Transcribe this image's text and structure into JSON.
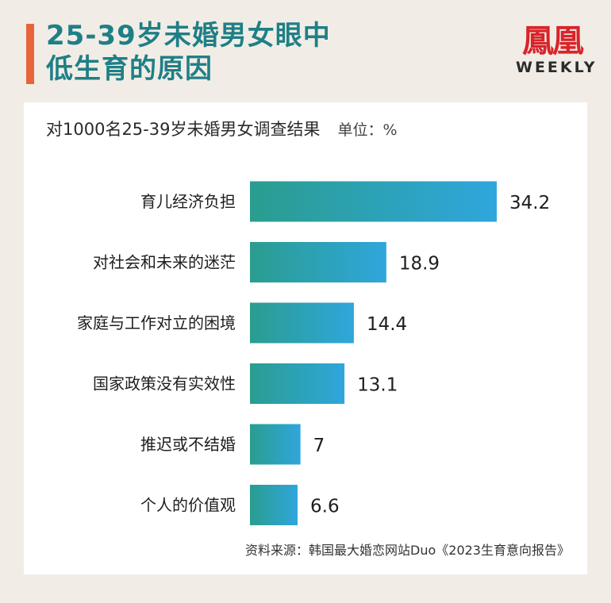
{
  "header": {
    "title_line1": "25-39岁未婚男女眼中",
    "title_line2": "低生育的原因",
    "logo_mark": "鳳凰",
    "logo_text": "WEEKLY"
  },
  "card": {
    "subtitle": "对1000名25-39岁未婚男女调查结果",
    "unit": "单位：%",
    "source": "资料来源：韩国最大婚恋网站Duo《2023生育意向报告》"
  },
  "colors": {
    "title": "#1f7f86",
    "accent": "#e8643a",
    "bar_start": "#2a9d8f",
    "bar_end": "#2fa6dc",
    "logo": "#d9232a"
  },
  "chart_data": {
    "type": "bar",
    "orientation": "horizontal",
    "categories": [
      "育儿经济负担",
      "对社会和未来的迷茫",
      "家庭与工作对立的困境",
      "国家政策没有实效性",
      "推迟或不结婚",
      "个人的价值观"
    ],
    "values": [
      34.2,
      18.9,
      14.4,
      13.1,
      7,
      6.6
    ],
    "value_labels": [
      "34.2",
      "18.9",
      "14.4",
      "13.1",
      "7",
      "6.6"
    ],
    "title": "对1000名25-39岁未婚男女调查结果",
    "unit": "单位：%",
    "xlim": [
      0,
      34.2
    ],
    "grid": false,
    "legend": "none"
  }
}
